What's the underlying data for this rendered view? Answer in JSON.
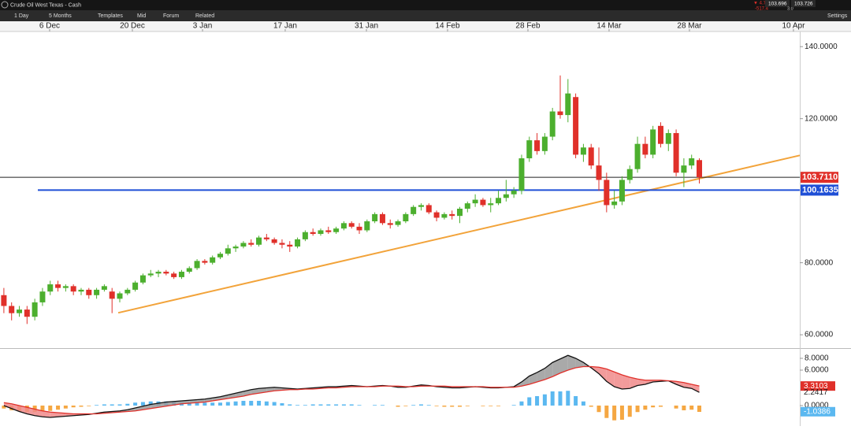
{
  "header": {
    "instrument": "Crude Oil West Texas - Cash",
    "change": "▼ 4.75%",
    "change_points": "-517.4",
    "bid": "103.696",
    "spread": "3.0",
    "ask": "103.726"
  },
  "toolbar": {
    "interval": "1 Day",
    "range": "5 Months",
    "templates": "Templates",
    "price_type": "Mid",
    "forum": "Forum",
    "related": "Related",
    "settings": "Settings"
  },
  "chart_data": [
    {
      "type": "candlestick",
      "xlim": [
        -0.5,
        103
      ],
      "ylim": [
        56.3,
        144.2
      ],
      "xticks": [
        {
          "value": 5.92,
          "label": "6 Dec"
        },
        {
          "value": 16.63,
          "label": "20 Dec"
        },
        {
          "value": 25.71,
          "label": "3 Jan"
        },
        {
          "value": 36.41,
          "label": "17 Jan"
        },
        {
          "value": 46.92,
          "label": "31 Jan"
        },
        {
          "value": 57.42,
          "label": "14 Feb"
        },
        {
          "value": 67.82,
          "label": "28 Feb"
        },
        {
          "value": 78.32,
          "label": "14 Mar"
        },
        {
          "value": 88.72,
          "label": "28 Mar"
        },
        {
          "value": 102.18,
          "label": "10 Apr"
        }
      ],
      "yticks": [
        {
          "value": 140,
          "label": "140.0000"
        },
        {
          "value": 120,
          "label": "120.0000"
        },
        {
          "value": 80,
          "label": "80.0000"
        },
        {
          "value": 60,
          "label": "60.0000"
        }
      ],
      "up_color": "#4caf2e",
      "down_color": "#e0302a",
      "open": [
        71,
        68,
        66,
        67,
        65,
        69,
        72,
        74,
        73,
        73.5,
        72,
        72.5,
        71,
        72.5,
        72,
        70,
        71.5,
        72.5,
        74.5,
        76.5,
        77,
        77.5,
        77,
        76,
        77.5,
        78.5,
        80.5,
        80,
        81.5,
        82.5,
        84,
        84.5,
        85.5,
        85,
        87,
        86.5,
        85.5,
        85,
        84.5,
        86.5,
        88.5,
        88,
        89,
        88.5,
        89.5,
        91,
        90,
        89,
        91.5,
        93.5,
        91,
        90.5,
        91.5,
        93.5,
        95.5,
        96,
        94,
        92.5,
        93.5,
        93,
        95,
        96.5,
        97.5,
        96,
        96.5,
        98,
        99,
        100,
        109,
        114,
        111,
        115,
        122,
        121,
        126,
        110,
        112,
        107,
        103,
        96,
        97,
        103,
        106,
        113,
        110,
        118,
        113,
        116,
        105,
        107,
        108.5
      ],
      "high": [
        73,
        69,
        68,
        68,
        70,
        73,
        75,
        75,
        74,
        74,
        73,
        73,
        73,
        74,
        73,
        72,
        73,
        75,
        77,
        78,
        78,
        78,
        77.5,
        78,
        79,
        81,
        81,
        82,
        83,
        85,
        85,
        86,
        86.5,
        87.5,
        88,
        87,
        86.5,
        86,
        87,
        89,
        89.5,
        89.5,
        90,
        90,
        91.5,
        91.5,
        91,
        92,
        94,
        94,
        92,
        92,
        94,
        96,
        96.5,
        96.5,
        94.5,
        94,
        94.5,
        95.5,
        97,
        99,
        98,
        98,
        100,
        103,
        101,
        110,
        115,
        116,
        116,
        123,
        132,
        131,
        127,
        113,
        113,
        112,
        105,
        100,
        104,
        107,
        115,
        115,
        118,
        119,
        117,
        117,
        109,
        110,
        109
      ],
      "low": [
        66,
        64,
        65,
        63,
        64,
        68,
        71,
        72,
        72,
        71,
        71,
        70,
        70,
        72,
        66,
        69,
        71,
        72,
        74,
        76,
        76,
        76.5,
        75.5,
        75.5,
        77,
        78,
        79.5,
        79.5,
        81,
        82,
        83,
        84,
        84.5,
        84.5,
        86,
        85,
        84,
        83,
        84,
        86,
        87.5,
        87.5,
        88,
        88,
        89,
        89.5,
        88,
        88.5,
        91,
        90.5,
        89.5,
        90,
        91,
        93,
        94.5,
        93.5,
        91.5,
        92,
        92,
        91,
        94,
        95.5,
        95.5,
        94,
        96,
        97,
        98,
        99,
        108,
        110,
        110,
        114,
        120,
        119,
        109,
        108,
        106,
        100,
        94,
        95,
        96,
        102,
        105,
        109,
        109,
        112,
        111,
        104,
        101,
        106,
        102
      ],
      "close": [
        68,
        66,
        67,
        65,
        69,
        72,
        74,
        73,
        73.5,
        72,
        72.5,
        71,
        72.5,
        73.5,
        70,
        71.5,
        72.5,
        74.5,
        76.5,
        77,
        77.5,
        77,
        76,
        77.5,
        78.5,
        80.5,
        80,
        81.5,
        82.5,
        84,
        84.5,
        85.5,
        85,
        87,
        86.5,
        85.5,
        85,
        84.5,
        86.5,
        88.5,
        88,
        89,
        88.5,
        89.5,
        91,
        90,
        89,
        91.5,
        93.5,
        91,
        90.5,
        91.5,
        93.5,
        95.5,
        96,
        94,
        92.5,
        93.5,
        93,
        95,
        96.5,
        97.5,
        96,
        96.5,
        98,
        99,
        100,
        109,
        114,
        111,
        115,
        122,
        121,
        127,
        110,
        112,
        107,
        103,
        96,
        97,
        103,
        106,
        113,
        110,
        117,
        113,
        116,
        105,
        107,
        109,
        103.7
      ],
      "hlines": [
        {
          "value": 103.711,
          "label": "103.7110",
          "color": "#222222",
          "label_bg": "#e0302a"
        },
        {
          "value": 100.1635,
          "label": "100.1635",
          "color": "#1f4fd6",
          "label_bg": "#1f4fd6"
        }
      ],
      "trendline": {
        "x": [
          14.8,
          103
        ],
        "y": [
          66.1,
          109.8
        ],
        "color": "#f2a33a"
      }
    },
    {
      "type": "macd",
      "ylim": [
        -3.47,
        9.73
      ],
      "yticks": [
        {
          "value": 8,
          "label": "8.0000"
        },
        {
          "value": 6,
          "label": "6.0000"
        },
        {
          "value": 0,
          "label": "0.0000"
        }
      ],
      "series": [
        {
          "color": "#111111",
          "values": [
            0,
            -0.5,
            -1,
            -1.4,
            -1.7,
            -1.9,
            -2,
            -1.9,
            -1.8,
            -1.7,
            -1.6,
            -1.5,
            -1.3,
            -1.1,
            -1,
            -0.9,
            -0.7,
            -0.4,
            -0.1,
            0.2,
            0.4,
            0.6,
            0.7,
            0.8,
            0.9,
            1,
            1.1,
            1.3,
            1.5,
            1.8,
            2.1,
            2.4,
            2.7,
            2.9,
            3,
            3.1,
            3,
            2.9,
            2.8,
            2.9,
            3,
            3.1,
            3.2,
            3.2,
            3.3,
            3.4,
            3.3,
            3.2,
            3.3,
            3.4,
            3.3,
            3.1,
            3.1,
            3.3,
            3.5,
            3.4,
            3.2,
            3.1,
            3,
            3,
            3.1,
            3.2,
            3.1,
            3,
            3,
            3.1,
            3.2,
            4,
            5,
            5.6,
            6.3,
            7.3,
            7.9,
            8.5,
            8,
            7.3,
            6.4,
            5.4,
            4.1,
            3.2,
            2.8,
            2.9,
            3.4,
            3.6,
            4,
            4.1,
            4.2,
            3.6,
            3.1,
            2.9,
            2.24
          ]
        },
        {
          "color": "#e0302a",
          "values": [
            0.5,
            0.3,
            0,
            -0.3,
            -0.6,
            -0.9,
            -1.1,
            -1.2,
            -1.3,
            -1.4,
            -1.4,
            -1.4,
            -1.4,
            -1.3,
            -1.2,
            -1.1,
            -1,
            -0.9,
            -0.7,
            -0.5,
            -0.3,
            -0.1,
            0.1,
            0.3,
            0.4,
            0.5,
            0.6,
            0.8,
            1,
            1.2,
            1.4,
            1.6,
            1.9,
            2.1,
            2.3,
            2.5,
            2.6,
            2.7,
            2.7,
            2.8,
            2.8,
            2.9,
            3,
            3,
            3.1,
            3.2,
            3.2,
            3.2,
            3.2,
            3.3,
            3.3,
            3.3,
            3.2,
            3.2,
            3.3,
            3.3,
            3.3,
            3.3,
            3.2,
            3.2,
            3.2,
            3.2,
            3.2,
            3.1,
            3.1,
            3.1,
            3.1,
            3.3,
            3.6,
            4,
            4.4,
            4.9,
            5.5,
            6,
            6.4,
            6.6,
            6.6,
            6.5,
            6.2,
            5.7,
            5.2,
            4.8,
            4.5,
            4.3,
            4.3,
            4.3,
            4.2,
            4.1,
            3.9,
            3.6,
            3.31
          ]
        }
      ],
      "histogram": {
        "pos_color": "#5bb8f0",
        "neg_color": "#f5a742",
        "values": [
          -0.5,
          -0.8,
          -1,
          -1.1,
          -1.1,
          -1,
          -0.9,
          -0.7,
          -0.5,
          -0.3,
          -0.2,
          -0.1,
          0.1,
          0.2,
          0.2,
          0.2,
          0.3,
          0.5,
          0.6,
          0.7,
          0.7,
          0.7,
          0.6,
          0.5,
          0.5,
          0.5,
          0.5,
          0.5,
          0.5,
          0.6,
          0.7,
          0.8,
          0.8,
          0.8,
          0.7,
          0.6,
          0.4,
          0.2,
          0.1,
          0.1,
          0.2,
          0.2,
          0.2,
          0.2,
          0.2,
          0.2,
          0.1,
          0,
          0.1,
          0.1,
          0,
          -0.2,
          -0.1,
          0.1,
          0.2,
          0.1,
          -0.1,
          -0.2,
          -0.2,
          -0.2,
          -0.1,
          0,
          -0.1,
          -0.1,
          -0.1,
          0,
          0.1,
          0.7,
          1.4,
          1.6,
          1.9,
          2.4,
          2.4,
          2.5,
          1.6,
          0.7,
          -0.2,
          -1.1,
          -2.1,
          -2.5,
          -2.4,
          -1.9,
          -1.1,
          -0.7,
          -0.3,
          -0.2,
          0,
          -0.5,
          -0.8,
          -0.7,
          -1.07
        ]
      },
      "markers": [
        {
          "value": 3.3103,
          "label": "3.3103",
          "bg": "#e0302a"
        },
        {
          "value": 2.2417,
          "label": "2.2417",
          "bg": "none"
        },
        {
          "value": -1.0386,
          "label": "-1.0386",
          "bg": "#5bb8f0"
        }
      ]
    }
  ]
}
